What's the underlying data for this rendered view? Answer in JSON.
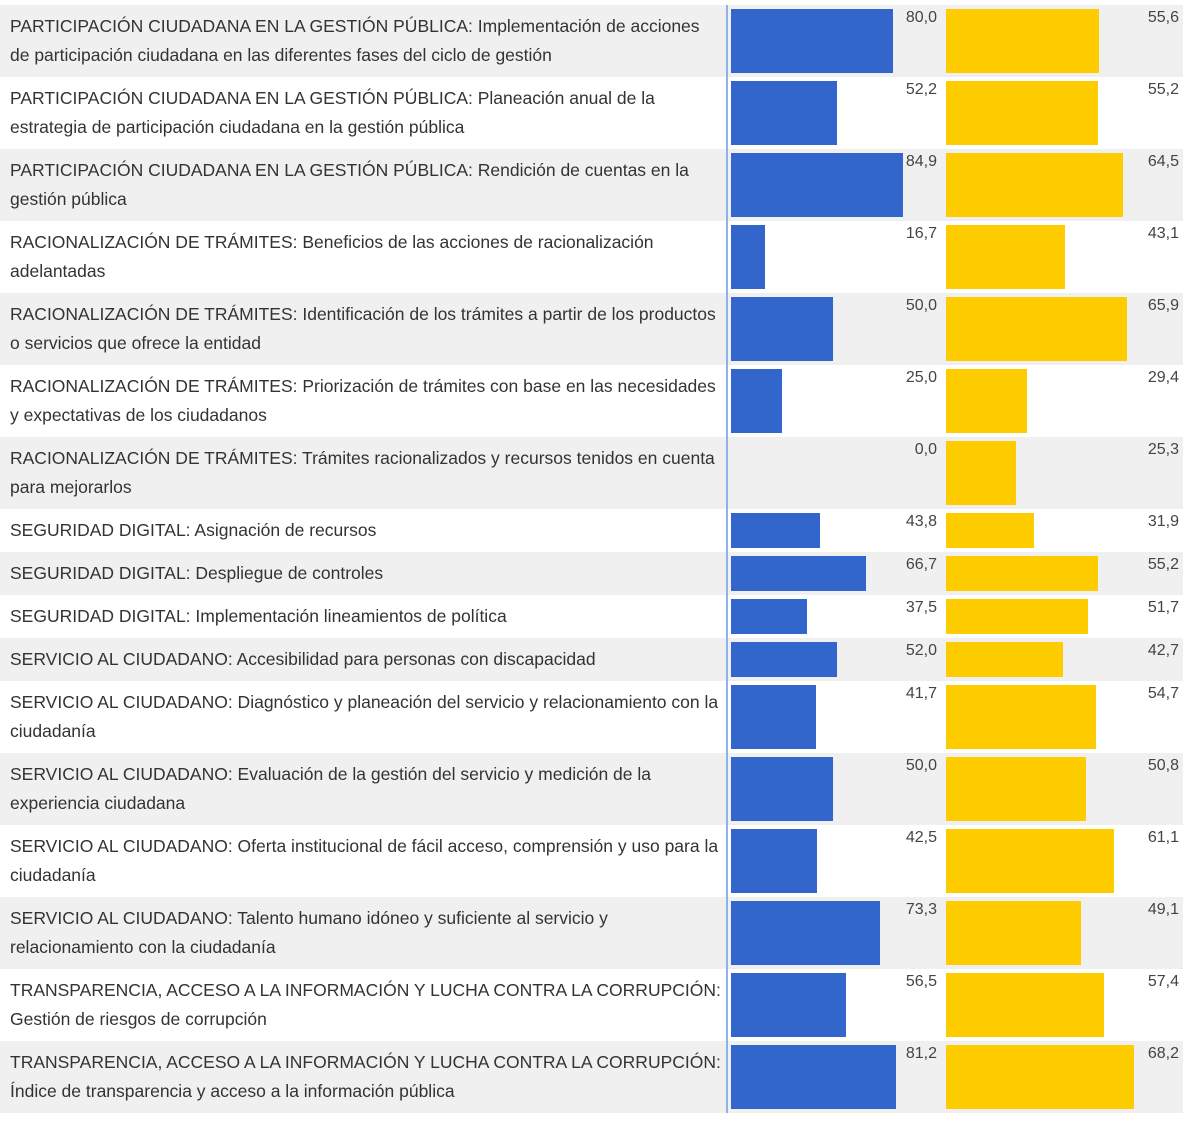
{
  "table": {
    "rows": [
      {
        "label": "PARTICIPACIÓN CIUDADANA EN LA GESTIÓN PÚBLICA: Implementación de acciones de participación ciudadana en las diferentes fases del ciclo de gestión",
        "values": [
          80.0,
          55.6
        ],
        "value_labels": [
          "80,0",
          "55,6"
        ]
      },
      {
        "label": "PARTICIPACIÓN CIUDADANA EN LA GESTIÓN PÚBLICA: Planeación anual de la estrategia de participación ciudadana en la gestión pública",
        "values": [
          52.2,
          55.2
        ],
        "value_labels": [
          "52,2",
          "55,2"
        ]
      },
      {
        "label": "PARTICIPACIÓN CIUDADANA EN LA GESTIÓN PÚBLICA: Rendición de cuentas en la gestión pública",
        "values": [
          84.9,
          64.5
        ],
        "value_labels": [
          "84,9",
          "64,5"
        ]
      },
      {
        "label": "RACIONALIZACIÓN DE TRÁMITES: Beneficios de las acciones de racionalización adelantadas",
        "values": [
          16.7,
          43.1
        ],
        "value_labels": [
          "16,7",
          "43,1"
        ]
      },
      {
        "label": "RACIONALIZACIÓN DE TRÁMITES: Identificación de los trámites a partir de los productos o servicios que ofrece la entidad",
        "values": [
          50.0,
          65.9
        ],
        "value_labels": [
          "50,0",
          "65,9"
        ]
      },
      {
        "label": "RACIONALIZACIÓN DE TRÁMITES: Priorización de trámites con base en las necesidades y expectativas de los ciudadanos",
        "values": [
          25.0,
          29.4
        ],
        "value_labels": [
          "25,0",
          "29,4"
        ]
      },
      {
        "label": "RACIONALIZACIÓN DE TRÁMITES: Trámites racionalizados y recursos tenidos en cuenta para mejorarlos",
        "values": [
          0.0,
          25.3
        ],
        "value_labels": [
          "0,0",
          "25,3"
        ]
      },
      {
        "label": "SEGURIDAD DIGITAL: Asignación de recursos",
        "values": [
          43.8,
          31.9
        ],
        "value_labels": [
          "43,8",
          "31,9"
        ]
      },
      {
        "label": "SEGURIDAD DIGITAL: Despliegue de controles",
        "values": [
          66.7,
          55.2
        ],
        "value_labels": [
          "66,7",
          "55,2"
        ]
      },
      {
        "label": "SEGURIDAD DIGITAL: Implementación lineamientos de política",
        "values": [
          37.5,
          51.7
        ],
        "value_labels": [
          "37,5",
          "51,7"
        ]
      },
      {
        "label": "SERVICIO AL CIUDADANO: Accesibilidad para personas con discapacidad",
        "values": [
          52.0,
          42.7
        ],
        "value_labels": [
          "52,0",
          "42,7"
        ]
      },
      {
        "label": "SERVICIO AL CIUDADANO: Diagnóstico y planeación del servicio y relacionamiento con la ciudadanía",
        "values": [
          41.7,
          54.7
        ],
        "value_labels": [
          "41,7",
          "54,7"
        ]
      },
      {
        "label": "SERVICIO AL CIUDADANO: Evaluación de la gestión del servicio y medición de la experiencia ciudadana",
        "values": [
          50.0,
          50.8
        ],
        "value_labels": [
          "50,0",
          "50,8"
        ]
      },
      {
        "label": "SERVICIO AL CIUDADANO: Oferta institucional de fácil acceso, comprensión y uso para la ciudadanía",
        "values": [
          42.5,
          61.1
        ],
        "value_labels": [
          "42,5",
          "61,1"
        ]
      },
      {
        "label": "SERVICIO AL CIUDADANO: Talento humano idóneo y suficiente al servicio y relacionamiento con la ciudadanía",
        "values": [
          73.3,
          49.1
        ],
        "value_labels": [
          "73,3",
          "49,1"
        ]
      },
      {
        "label": "TRANSPARENCIA, ACCESO A LA INFORMACIÓN Y LUCHA CONTRA LA CORRUPCIÓN: Gestión de riesgos de corrupción",
        "values": [
          56.5,
          57.4
        ],
        "value_labels": [
          "56,5",
          "57,4"
        ]
      },
      {
        "label": "TRANSPARENCIA, ACCESO A LA INFORMACIÓN Y LUCHA CONTRA LA CORRUPCIÓN: Índice de transparencia y acceso a la información pública",
        "values": [
          81.2,
          68.2
        ],
        "value_labels": [
          "81,2",
          "68,2"
        ]
      }
    ]
  }
}
